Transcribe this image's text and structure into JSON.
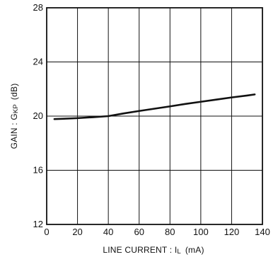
{
  "chart_data": {
    "type": "line",
    "title": "",
    "xlabel": "LINE CURRENT : I",
    "xlabel_subscript": "L",
    "xlabel_unit": "(mA)",
    "ylabel": "GAIN : G",
    "ylabel_subscript": "KP",
    "ylabel_unit": "(dB)",
    "xlim": [
      0,
      140
    ],
    "ylim": [
      12,
      28
    ],
    "x_ticks": [
      0,
      20,
      40,
      60,
      80,
      100,
      120,
      140
    ],
    "y_ticks": [
      12,
      16,
      20,
      24,
      28
    ],
    "x_tick_labels": [
      "0",
      "20",
      "40",
      "60",
      "80",
      "100",
      "120",
      "140"
    ],
    "y_tick_labels": [
      "12",
      "16",
      "20",
      "24",
      "28"
    ],
    "grid": true,
    "colors": {
      "line": "#111111",
      "grid": "#111111",
      "axes": "#111111"
    },
    "series": [
      {
        "x": [
          5,
          10,
          20,
          30,
          40,
          50,
          60,
          70,
          80,
          90,
          100,
          110,
          120,
          130,
          135
        ],
        "y": [
          19.78,
          19.8,
          19.85,
          19.92,
          20.0,
          20.2,
          20.38,
          20.55,
          20.72,
          20.9,
          21.06,
          21.22,
          21.38,
          21.52,
          21.6
        ]
      }
    ]
  }
}
